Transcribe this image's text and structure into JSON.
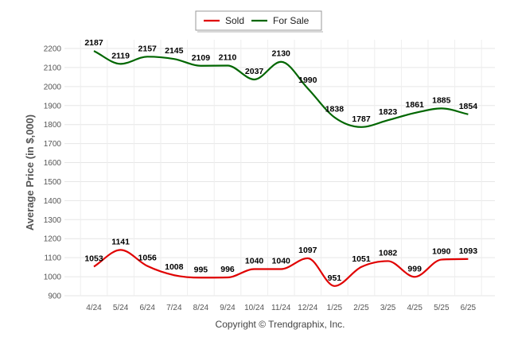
{
  "chart_data": {
    "type": "line",
    "ylabel": "Average Price (in $,000)",
    "ylim": [
      900,
      2250
    ],
    "yticks": [
      900,
      1000,
      1100,
      1200,
      1300,
      1400,
      1500,
      1600,
      1700,
      1800,
      1900,
      2000,
      2100,
      2200
    ],
    "categories": [
      "4/24",
      "5/24",
      "6/24",
      "7/24",
      "8/24",
      "9/24",
      "10/24",
      "11/24",
      "12/24",
      "1/25",
      "2/25",
      "3/25",
      "4/25",
      "5/25",
      "6/25"
    ],
    "legend_position": "top-center",
    "grid": true,
    "series": [
      {
        "name": "Sold",
        "color": "#e00000",
        "values": [
          1053,
          1141,
          1056,
          1008,
          995,
          996,
          1040,
          1040,
          1097,
          951,
          1051,
          1082,
          999,
          1090,
          1093
        ]
      },
      {
        "name": "For Sale",
        "color": "#006600",
        "values": [
          2187,
          2119,
          2157,
          2145,
          2109,
          2110,
          2037,
          2130,
          1990,
          1838,
          1787,
          1823,
          1861,
          1885,
          1854
        ]
      }
    ]
  },
  "footer": {
    "copyright": "Copyright © Trendgraphix, Inc."
  }
}
